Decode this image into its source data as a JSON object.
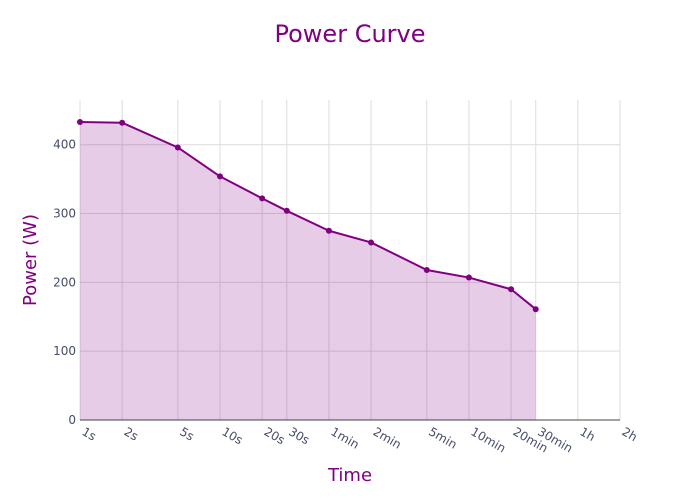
{
  "chart_data": {
    "type": "area",
    "title": "Power Curve",
    "xlabel": "Time",
    "ylabel": "Power (W)",
    "x_scale": "log",
    "x_unit": "seconds",
    "x_tick_values": [
      1,
      2,
      5,
      10,
      20,
      30,
      60,
      120,
      300,
      600,
      1200,
      1800,
      3600,
      7200
    ],
    "x_tick_labels": [
      "1s",
      "2s",
      "5s",
      "10s",
      "20s",
      "30s",
      "1min",
      "2min",
      "5min",
      "10min",
      "20min",
      "30min",
      "1h",
      "2h"
    ],
    "y_ticks": [
      0,
      100,
      200,
      300,
      400
    ],
    "ylim": [
      0,
      465
    ],
    "grid": true,
    "legend": "none",
    "series": [
      {
        "x": [
          1,
          2,
          5,
          10,
          20,
          30,
          60,
          120,
          300,
          600,
          1200,
          1800
        ],
        "values": [
          433,
          432,
          396,
          354,
          322,
          304,
          275,
          258,
          218,
          207,
          190,
          161
        ]
      }
    ]
  },
  "colors": {
    "line": "#800080",
    "fill": "rgba(128, 0, 128, 0.2)",
    "title": "#800080",
    "grid": "#dcdcdc",
    "tick": "#444c6a"
  }
}
